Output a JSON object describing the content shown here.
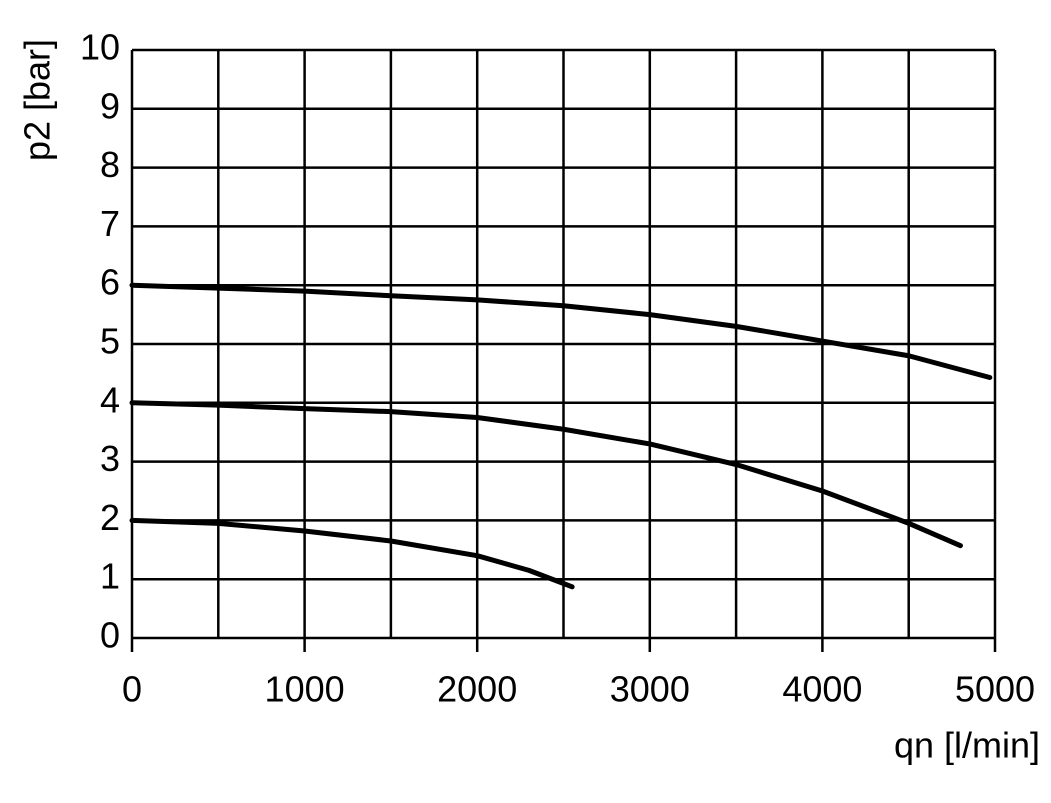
{
  "chart_data": {
    "type": "line",
    "xlabel": "qn [l/min]",
    "ylabel": "p2 [bar]",
    "xlim": [
      0,
      5000
    ],
    "ylim": [
      0,
      10
    ],
    "xticks": [
      0,
      1000,
      2000,
      3000,
      4000,
      5000
    ],
    "xgrid_minor": [
      500,
      1500,
      2500,
      3500,
      4500
    ],
    "yticks": [
      0,
      1,
      2,
      3,
      4,
      5,
      6,
      7,
      8,
      9,
      10
    ],
    "grid": true,
    "series": [
      {
        "color": "#000000",
        "x": [
          0,
          500,
          1000,
          1500,
          2000,
          2500,
          3000,
          3500,
          4000,
          4500,
          4970
        ],
        "values": [
          6.0,
          5.95,
          5.9,
          5.82,
          5.75,
          5.65,
          5.5,
          5.3,
          5.05,
          4.8,
          4.43
        ]
      },
      {
        "color": "#000000",
        "x": [
          0,
          500,
          1000,
          1500,
          2000,
          2500,
          3000,
          3500,
          4000,
          4500,
          4800
        ],
        "values": [
          4.0,
          3.96,
          3.9,
          3.85,
          3.75,
          3.55,
          3.3,
          2.95,
          2.5,
          1.95,
          1.57
        ]
      },
      {
        "color": "#000000",
        "x": [
          0,
          500,
          1000,
          1500,
          2000,
          2300,
          2550
        ],
        "values": [
          2.0,
          1.95,
          1.82,
          1.65,
          1.4,
          1.15,
          0.87
        ]
      }
    ]
  }
}
